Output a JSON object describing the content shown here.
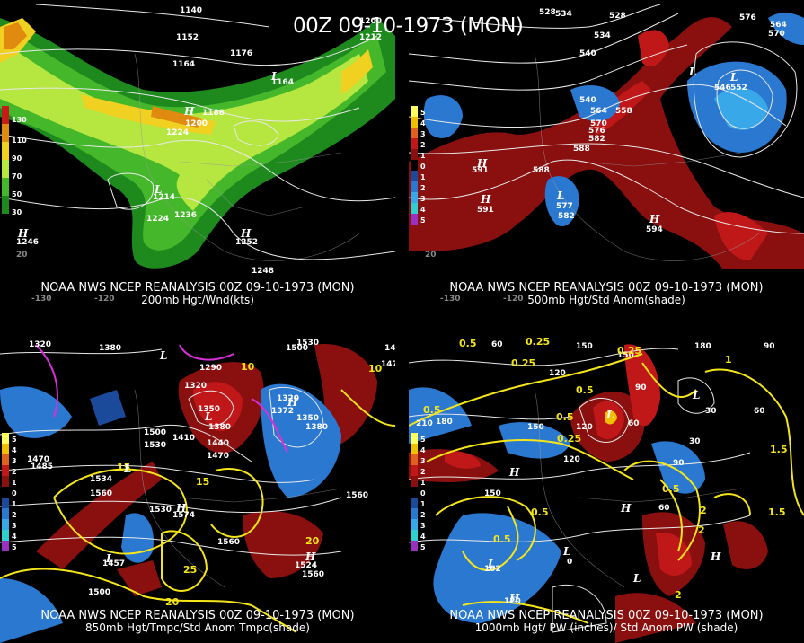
{
  "title": "00Z 09-10-1973 (MON)",
  "panels": [
    {
      "id": "p1",
      "caption_line1": "NOAA NWS NCEP REANALYSIS 00Z 09-10-1973 (MON)",
      "caption_line2": "200mb Hgt/Wnd(kts)",
      "colorbar": [
        "130",
        "110",
        "90",
        "70",
        "50",
        "30"
      ],
      "colorbar_colors": [
        "#c81a1a",
        "#e08a10",
        "#f0d020",
        "#b6e640",
        "#44b82a",
        "#1e8a1e"
      ],
      "contour_labels": [
        "1140",
        "1200",
        "1212",
        "1152",
        "1164",
        "1176",
        "1164",
        "1188",
        "1200",
        "1224",
        "1214",
        "1224",
        "1236",
        "1252",
        "1246",
        "1248",
        "20",
        "-130",
        "-120"
      ],
      "highs_lows": [
        "L",
        "H",
        "L",
        "H",
        "H"
      ]
    },
    {
      "id": "p2",
      "caption_line1": "NOAA NWS NCEP REANALYSIS 00Z 09-10-1973 (MON)",
      "caption_line2": "500mb Hgt/Std Anom(shade)",
      "colorbar": [
        "5",
        "4",
        "3",
        "2",
        "1",
        "0",
        "1",
        "2",
        "3",
        "4",
        "5"
      ],
      "colorbar_colors": [
        "#ffff60",
        "#f0c000",
        "#e06020",
        "#c01818",
        "#8a0f0f",
        "#000000",
        "#1c4a9a",
        "#2a78d0",
        "#38a8e8",
        "#30d0d0",
        "#9a30c0"
      ],
      "contour_labels": [
        "528",
        "534",
        "528",
        "534",
        "540",
        "576",
        "564",
        "570",
        "546",
        "552",
        "540",
        "558",
        "564",
        "570",
        "576",
        "582",
        "588",
        "591",
        "588",
        "577",
        "582",
        "591",
        "594",
        "20",
        "-130",
        "-120"
      ],
      "highs_lows": [
        "L",
        "H",
        "H",
        "L",
        "H",
        "L"
      ]
    },
    {
      "id": "p3",
      "caption_line1": "NOAA NWS NCEP REANALYSIS 00Z 09-10-1973 (MON)",
      "caption_line2": "850mb Hgt/Tmpc/Std Anom Tmpc(shade)",
      "colorbar": [
        "5",
        "4",
        "3",
        "2",
        "1",
        "0",
        "1",
        "2",
        "3",
        "4",
        "5"
      ],
      "colorbar_colors": [
        "#ffff60",
        "#f0c000",
        "#e06020",
        "#c01818",
        "#8a0f0f",
        "#000000",
        "#1c4a9a",
        "#2a78d0",
        "#38a8e8",
        "#30d0d0",
        "#9a30c0"
      ],
      "contour_labels": [
        "1320",
        "1380",
        "1530",
        "1500",
        "1440",
        "1470",
        "1290",
        "1320",
        "1350",
        "1380",
        "1410",
        "1440",
        "1470",
        "1500",
        "1530",
        "1560",
        "1350",
        "1320",
        "1372",
        "1380",
        "1470",
        "1485",
        "1534",
        "1560",
        "1530",
        "1574",
        "1560",
        "1524",
        "1560",
        "1457",
        "1500"
      ],
      "temp_labels": [
        "10",
        "15",
        "20",
        "25",
        "20",
        "15",
        "10"
      ],
      "highs_lows": [
        "L",
        "H",
        "L",
        "H",
        "L",
        "H",
        "L"
      ]
    },
    {
      "id": "p4",
      "caption_line1": "NOAA NWS NCEP REANALYSIS 00Z 09-10-1973 (MON)",
      "caption_line2": "1000mb Hgt/ PW (inches)/ Std Anom PW (shade)",
      "colorbar": [
        "5",
        "4",
        "3",
        "2",
        "1",
        "0",
        "1",
        "2",
        "3",
        "4",
        "5"
      ],
      "colorbar_colors": [
        "#ffff60",
        "#f0c000",
        "#e06020",
        "#c01818",
        "#8a0f0f",
        "#000000",
        "#1c4a9a",
        "#2a78d0",
        "#38a8e8",
        "#30d0d0",
        "#9a30c0"
      ],
      "contour_labels": [
        "60",
        "90",
        "150",
        "180",
        "90",
        "120",
        "150",
        "30",
        "60",
        "210",
        "180",
        "150",
        "120",
        "60",
        "30",
        "90",
        "120",
        "150",
        "102",
        "120",
        "60",
        "0"
      ],
      "pw_labels": [
        "0.5",
        "0.25",
        "0.25",
        "0.25",
        "0.5",
        "0.5",
        "0.25",
        "0.5",
        "1",
        "1.5",
        "2",
        "2",
        "2",
        "0.5",
        "0.5",
        "1.5",
        "0.5"
      ],
      "highs_lows": [
        "L",
        "L",
        "H",
        "L",
        "H",
        "H",
        "L",
        "L",
        "H"
      ]
    }
  ]
}
